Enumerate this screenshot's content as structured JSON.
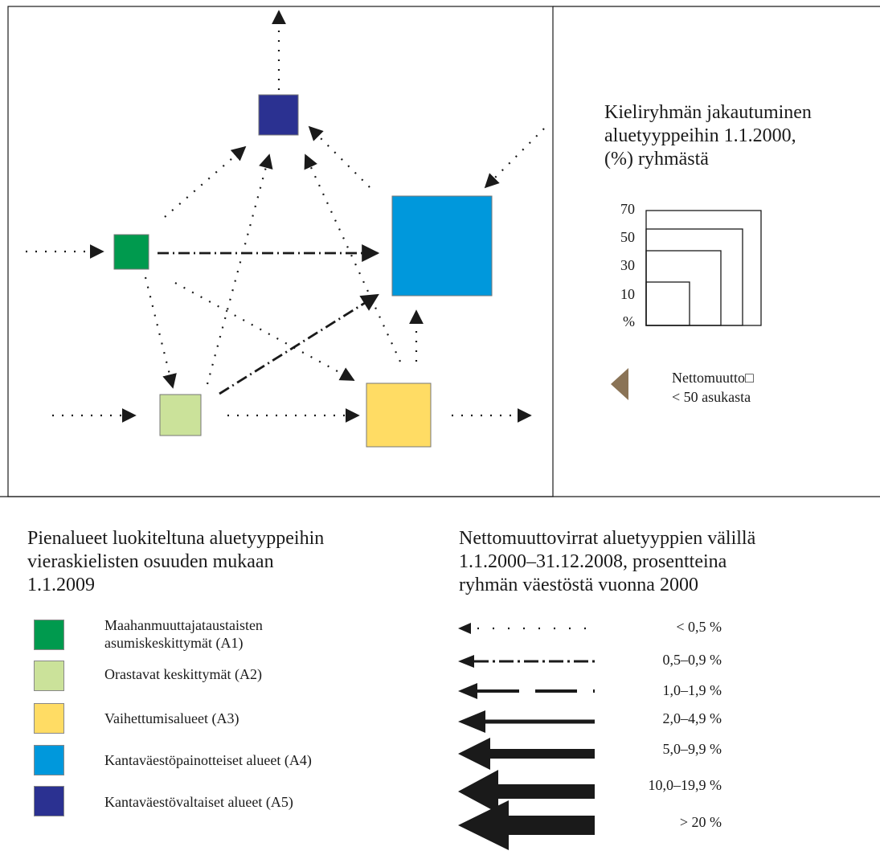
{
  "map_nodes": [
    {
      "id": "A1",
      "color": "#009a4e"
    },
    {
      "id": "A2",
      "color": "#cbe29a"
    },
    {
      "id": "A3",
      "color": "#ffdc64"
    },
    {
      "id": "A4",
      "color": "#0098dc"
    },
    {
      "id": "A5",
      "color": "#2b3191"
    }
  ],
  "size_legend": {
    "title": "Kieliryhmän jakautuminen\naluetyyppeihin 1.1.2000,\n(%) ryhmästä",
    "ticks": [
      "70",
      "50",
      "30",
      "10",
      "%"
    ]
  },
  "net_migration_note": "Nettomuutto□\n< 50 asukasta",
  "area_legend": {
    "title": "Pienalueet luokiteltuna aluetyyppeihin\nvieraskielisten osuuden mukaan\n1.1.2009",
    "items": [
      {
        "label": "Maahanmuuttajataustaisten\nasumiskeskittymät (A1)",
        "color": "#009a4e"
      },
      {
        "label": "Orastavat keskittymät (A2)",
        "color": "#cbe29a"
      },
      {
        "label": "Vaihettumisalueet (A3)",
        "color": "#ffdc64"
      },
      {
        "label": "Kantaväestöpainotteiset alueet (A4)",
        "color": "#0098dc"
      },
      {
        "label": "Kantaväestövaltaiset alueet (A5)",
        "color": "#2b3191"
      }
    ]
  },
  "flow_legend": {
    "title": "Nettomuuttovirrat aluetyyppien välillä\n1.1.2000–31.12.2008, prosentteina\nryhmän väestöstä vuonna 2000",
    "items": [
      {
        "label": "< 0,5 %"
      },
      {
        "label": "0,5–0,9 %"
      },
      {
        "label": "1,0–1,9 %"
      },
      {
        "label": "2,0–4,9 %"
      },
      {
        "label": "5,0–9,9 %"
      },
      {
        "label": "10,0–19,9 %"
      },
      {
        "label": "> 20 %"
      }
    ]
  },
  "colors": {
    "line": "#1a1a1a",
    "small_arrow": "#8a7356"
  }
}
